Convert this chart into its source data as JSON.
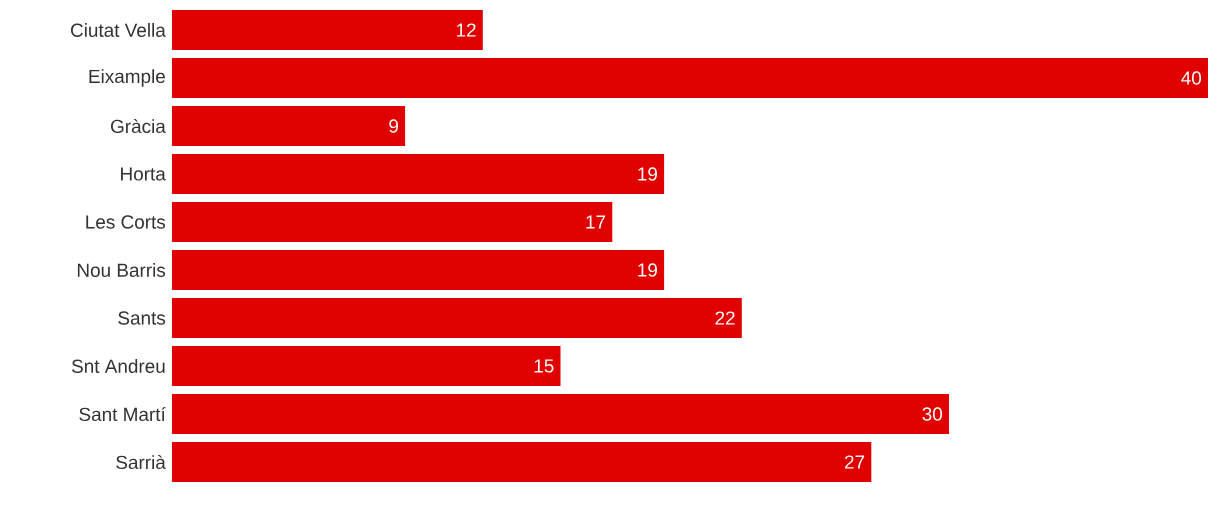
{
  "chart_data": {
    "type": "bar",
    "orientation": "horizontal",
    "categories": [
      "Ciutat Vella",
      "Eixample",
      "Gràcia",
      "Horta",
      "Les Corts",
      "Nou Barris",
      "Sants",
      "Snt Andreu",
      "Sant Martí",
      "Sarrià"
    ],
    "values": [
      12,
      40,
      9,
      19,
      17,
      19,
      22,
      15,
      30,
      27
    ],
    "value_labels": [
      "12",
      "40",
      "9",
      "19",
      "17",
      "19",
      "22",
      "15",
      "30",
      "27"
    ],
    "color": "#e00000",
    "tick_labels": "y"
  }
}
